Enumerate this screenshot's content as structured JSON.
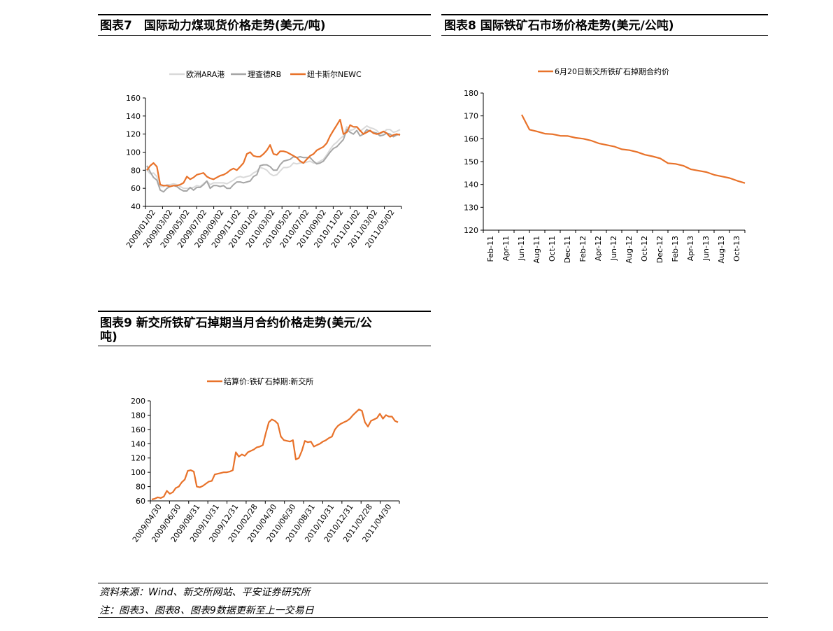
{
  "titles": {
    "fig7": "图表7　国际动力煤现货价格走势(美元/吨)",
    "fig8": "图表8  国际铁矿石市场价格走势(美元/公吨)",
    "fig9_line1": "图表9  新交所铁矿石掉期当月合约价格走势(美元/公",
    "fig9_line2": "吨)"
  },
  "footer": {
    "source": "资料来源：Wind、新交所网站、平安证券研究所",
    "note": "注：图表3、图表8、图表9数据更新至上一交易日"
  },
  "colors": {
    "orange": "#E8722A",
    "gray": "#A6A6A6",
    "lightgray": "#D9D9D9"
  },
  "chart_data": [
    {
      "id": "fig7",
      "type": "line",
      "title": "国际动力煤现货价格走势(美元/吨)",
      "ylim": [
        40,
        160
      ],
      "yticks": [
        40,
        60,
        80,
        100,
        120,
        140,
        160
      ],
      "xtick_labels": [
        "2009/01/02",
        "2009/03/02",
        "2009/05/02",
        "2009/07/02",
        "2009/09/02",
        "2009/11/02",
        "2010/01/02",
        "2010/03/02",
        "2010/05/02",
        "2010/07/02",
        "2010/09/02",
        "2010/11/02",
        "2011/01/02",
        "2011/03/02",
        "2011/05/02"
      ],
      "legend": [
        "欧洲ARA港",
        "理查德RB",
        "纽卡斯尔NEWC"
      ],
      "series": [
        {
          "name": "欧洲ARA港",
          "color": "#D9D9D9",
          "values": [
            80,
            76,
            77,
            73,
            62,
            62,
            64,
            64,
            65,
            64,
            62,
            60,
            60,
            60,
            61,
            63,
            62,
            65,
            68,
            64,
            66,
            66,
            66,
            66,
            65,
            67,
            69,
            72,
            73,
            72,
            73,
            74,
            77,
            79,
            83,
            82,
            80,
            76,
            74,
            75,
            79,
            83,
            83,
            84,
            88,
            87,
            88,
            88,
            89,
            90,
            88,
            88,
            90,
            92,
            97,
            103,
            108,
            111,
            115,
            118,
            128,
            124,
            125,
            128,
            123,
            126,
            129,
            127,
            126,
            124,
            120,
            122,
            125,
            125,
            122,
            123,
            125
          ]
        },
        {
          "name": "理查德RB",
          "color": "#A6A6A6",
          "values": [
            85,
            78,
            72,
            69,
            58,
            56,
            60,
            62,
            63,
            62,
            59,
            57,
            57,
            61,
            58,
            61,
            61,
            64,
            68,
            60,
            63,
            63,
            62,
            63,
            60,
            60,
            64,
            67,
            67,
            66,
            67,
            68,
            73,
            75,
            85,
            86,
            86,
            84,
            80,
            80,
            86,
            90,
            91,
            92,
            95,
            94,
            95,
            94,
            94,
            94,
            90,
            87,
            88,
            90,
            95,
            100,
            104,
            106,
            110,
            114,
            125,
            122,
            120,
            124,
            118,
            120,
            125,
            123,
            122,
            121,
            118,
            119,
            121,
            120,
            117,
            119,
            120
          ]
        },
        {
          "name": "纽卡斯尔NEWC",
          "color": "#E8722A",
          "values": [
            80,
            85,
            88,
            84,
            64,
            63,
            63,
            62,
            63,
            63,
            64,
            66,
            73,
            70,
            72,
            75,
            76,
            77,
            73,
            71,
            70,
            72,
            74,
            75,
            77,
            80,
            82,
            80,
            84,
            88,
            98,
            100,
            96,
            95,
            95,
            98,
            102,
            108,
            98,
            97,
            101,
            101,
            100,
            98,
            96,
            94,
            90,
            88,
            92,
            96,
            98,
            102,
            104,
            106,
            110,
            118,
            124,
            130,
            136,
            120,
            122,
            130,
            128,
            128,
            124,
            120,
            122,
            124,
            121,
            120,
            121,
            123,
            121,
            117,
            119,
            120,
            119
          ]
        }
      ]
    },
    {
      "id": "fig8",
      "type": "line",
      "title": "国际铁矿石市场价格走势(美元/公吨)",
      "ylim": [
        120,
        180
      ],
      "yticks": [
        120,
        130,
        140,
        150,
        160,
        170,
        180
      ],
      "xtick_labels": [
        "Feb-11",
        "Apr-11",
        "Jun-11",
        "Aug-11",
        "Oct-11",
        "Dec-11",
        "Feb-12",
        "Apr-12",
        "Jun-12",
        "Aug-12",
        "Oct-12",
        "Dec-12",
        "Feb-13",
        "Apr-13",
        "Jun-13",
        "Aug-13",
        "Oct-13"
      ],
      "legend": [
        "6月20日新交所铁矿石掉期合约价"
      ],
      "series": [
        {
          "name": "6月20日新交所铁矿石掉期合约价",
          "color": "#E8722A",
          "x_start_index": 2,
          "x_step": 0.5,
          "values": [
            170.5,
            164.0,
            163.2,
            162.2,
            162.0,
            161.3,
            161.2,
            160.4,
            160.0,
            159.2,
            158.0,
            157.3,
            156.6,
            155.4,
            155.0,
            154.2,
            153.0,
            152.3,
            151.4,
            149.3,
            149.0,
            148.2,
            146.6,
            146.0,
            145.4,
            144.2,
            143.5,
            142.8,
            141.6,
            140.6
          ]
        }
      ]
    },
    {
      "id": "fig9",
      "type": "line",
      "title": "新交所铁矿石掉期当月合约价格走势(美元/公吨)",
      "ylim": [
        60,
        200
      ],
      "yticks": [
        60,
        80,
        100,
        120,
        140,
        160,
        180,
        200
      ],
      "xtick_labels": [
        "2009/04/30",
        "2009/06/30",
        "2009/08/31",
        "2009/10/31",
        "2009/12/31",
        "2010/02/28",
        "2010/04/30",
        "2010/06/30",
        "2010/08/31",
        "2010/10/31",
        "2010/12/31",
        "2011/02/28",
        "2011/04/30"
      ],
      "legend": [
        "结算价:铁矿石掉期:新交所"
      ],
      "series": [
        {
          "name": "结算价:铁矿石掉期:新交所",
          "color": "#E8722A",
          "values": [
            62,
            63,
            65,
            64,
            66,
            74,
            70,
            72,
            78,
            80,
            86,
            90,
            102,
            103,
            101,
            80,
            79,
            81,
            84,
            87,
            88,
            97,
            98,
            99,
            100,
            100,
            101,
            103,
            128,
            122,
            125,
            123,
            128,
            130,
            132,
            135,
            136,
            138,
            155,
            170,
            174,
            172,
            168,
            150,
            145,
            144,
            143,
            145,
            118,
            120,
            130,
            144,
            142,
            143,
            136,
            138,
            140,
            143,
            145,
            148,
            150,
            160,
            165,
            168,
            170,
            172,
            175,
            180,
            184,
            188,
            186,
            170,
            164,
            172,
            174,
            176,
            182,
            175,
            180,
            178,
            178,
            172,
            170
          ]
        }
      ]
    }
  ]
}
